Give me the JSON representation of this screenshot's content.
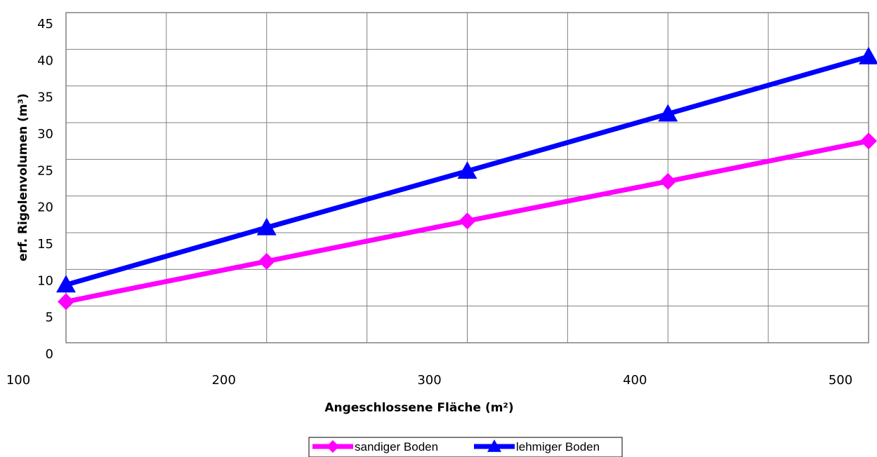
{
  "chart_data": {
    "type": "line",
    "title": "",
    "xlabel": "Angeschlossene Fläche (m²)",
    "ylabel": "erf. Rigolenvolumen (m³)",
    "x": [
      100,
      200,
      300,
      400,
      500
    ],
    "x_ticks": [
      "100",
      "200",
      "300",
      "400",
      "500"
    ],
    "y_ticks": [
      "0",
      "5",
      "10",
      "15",
      "20",
      "25",
      "30",
      "35",
      "40",
      "45"
    ],
    "ylim": [
      0,
      45
    ],
    "grid": true,
    "legend_position": "bottom-center",
    "series": [
      {
        "name": "sandiger Boden",
        "values": [
          5.6,
          11.1,
          16.6,
          22.0,
          27.5
        ],
        "color": "#ff00ff",
        "marker": "diamond"
      },
      {
        "name": "lehmiger Boden",
        "values": [
          7.9,
          15.7,
          23.4,
          31.2,
          39.0
        ],
        "color": "#0000ff",
        "marker": "triangle"
      }
    ]
  }
}
